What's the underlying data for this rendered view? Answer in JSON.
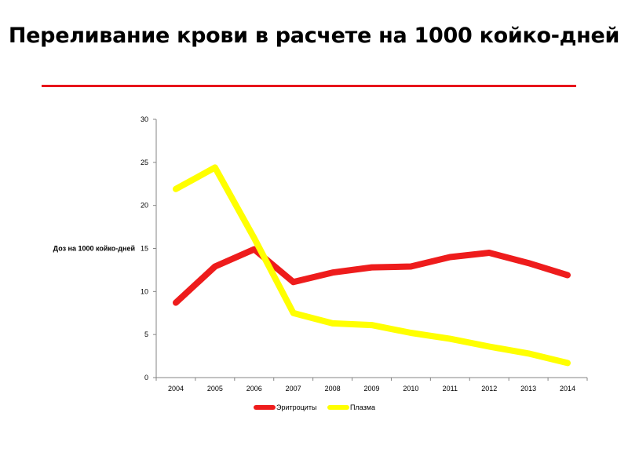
{
  "page": {
    "title": "Переливание крови в расчете на 1000 койко-дней",
    "rule_color": "#e8141b"
  },
  "chart_data": {
    "type": "line",
    "title": "",
    "xlabel": "",
    "ylabel": "Доз на 1000 койко-дней",
    "x": [
      "2004",
      "2005",
      "2006",
      "2007",
      "2008",
      "2009",
      "2010",
      "2011",
      "2012",
      "2013",
      "2014"
    ],
    "ylim": [
      0,
      30
    ],
    "yticks": [
      0,
      5,
      10,
      15,
      20,
      25,
      30
    ],
    "grid": false,
    "legend_position": "bottom",
    "series": [
      {
        "name": "Эритроциты",
        "color": "#ee1c1c",
        "values": [
          8.7,
          12.9,
          14.9,
          11.1,
          12.2,
          12.8,
          12.9,
          14.0,
          14.5,
          13.3,
          11.9
        ]
      },
      {
        "name": "Плазма",
        "color": "#ffff00",
        "values": [
          21.9,
          24.4,
          16.2,
          7.5,
          6.3,
          6.1,
          5.2,
          4.5,
          3.6,
          2.8,
          1.7
        ]
      }
    ]
  }
}
